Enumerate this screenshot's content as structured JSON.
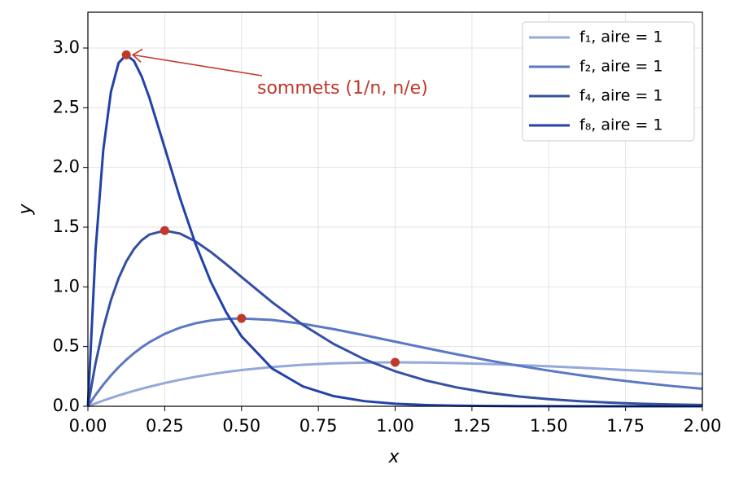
{
  "chart_data": {
    "type": "line",
    "xlabel": "x",
    "ylabel": "y",
    "annotation": "sommets (1/n,  n/e)",
    "xlim": [
      0,
      2
    ],
    "ylim": [
      0,
      3.3
    ],
    "xticks": [
      {
        "value": 0,
        "label": "0.00"
      },
      0.25,
      {
        "value": 0.5,
        "label": "0.50"
      },
      0.75,
      {
        "value": 1,
        "label": "1.00"
      },
      1.25,
      {
        "value": 1.5,
        "label": "1.50"
      },
      1.75,
      {
        "value": 2,
        "label": "2.00"
      }
    ],
    "yticks": [
      {
        "value": 0,
        "label": "0.0"
      },
      0.5,
      {
        "value": 1,
        "label": "1.0"
      },
      1.5,
      {
        "value": 2,
        "label": "2.0"
      },
      2.5,
      {
        "value": 3,
        "label": "3.0"
      }
    ],
    "grid": true,
    "legend": "upper right",
    "x": [
      0,
      0.025,
      0.05,
      0.075,
      0.1,
      0.125,
      0.15,
      0.175,
      0.2,
      0.25,
      0.3,
      0.35,
      0.4,
      0.45,
      0.5,
      0.6,
      0.7,
      0.8,
      0.9,
      1.0,
      1.1,
      1.2,
      1.3,
      1.4,
      1.5,
      1.6,
      1.7,
      1.8,
      1.9,
      2.0
    ],
    "series": [
      {
        "name": "f₁, aire = 1",
        "color": "#93a9da",
        "values": [
          0,
          0.0244,
          0.0476,
          0.0696,
          0.0905,
          0.1103,
          0.1291,
          0.1469,
          0.1637,
          0.1947,
          0.2222,
          0.2466,
          0.2681,
          0.2869,
          0.3033,
          0.3293,
          0.3476,
          0.3595,
          0.3659,
          0.3679,
          0.3662,
          0.3614,
          0.3543,
          0.3452,
          0.3347,
          0.323,
          0.3106,
          0.2975,
          0.2842,
          0.2707
        ]
      },
      {
        "name": "f₂, aire = 1",
        "color": "#5b78c2",
        "values": [
          0,
          0.0951,
          0.181,
          0.2582,
          0.3275,
          0.3894,
          0.4445,
          0.4933,
          0.5363,
          0.6065,
          0.6586,
          0.6952,
          0.7189,
          0.7318,
          0.7358,
          0.7229,
          0.6905,
          0.6461,
          0.5951,
          0.5413,
          0.4876,
          0.4354,
          0.3862,
          0.3405,
          0.2987,
          0.2609,
          0.2269,
          0.1967,
          0.17,
          0.1465
        ]
      },
      {
        "name": "f₄, aire = 1",
        "color": "#3350a2",
        "values": [
          0,
          0.3619,
          0.655,
          0.889,
          1.0725,
          1.2131,
          1.3171,
          1.3904,
          1.4379,
          1.4715,
          1.4458,
          1.381,
          1.2922,
          1.1902,
          1.0827,
          0.8709,
          0.681,
          0.5217,
          0.3934,
          0.2931,
          0.2161,
          0.158,
          0.1148,
          0.0828,
          0.0595,
          0.0425,
          0.0303,
          0.0215,
          0.0152,
          0.0107
        ]
      },
      {
        "name": "f₈, aire = 1",
        "color": "#2242aa",
        "values": [
          0,
          1.31,
          2.145,
          2.634,
          2.876,
          2.943,
          2.892,
          2.762,
          2.584,
          2.165,
          1.742,
          1.362,
          1.043,
          0.787,
          0.586,
          0.316,
          0.166,
          0.0851,
          0.043,
          0.0215,
          0.0106,
          0.0052,
          0.0025,
          0.0012,
          0.0006,
          0.0003,
          0.0001,
          0.0001,
          0,
          0
        ]
      }
    ],
    "markers": {
      "color": "#c0392b",
      "x": [
        1,
        0.5,
        0.25,
        0.125
      ],
      "values": [
        0.368,
        0.736,
        1.472,
        2.943
      ]
    }
  }
}
